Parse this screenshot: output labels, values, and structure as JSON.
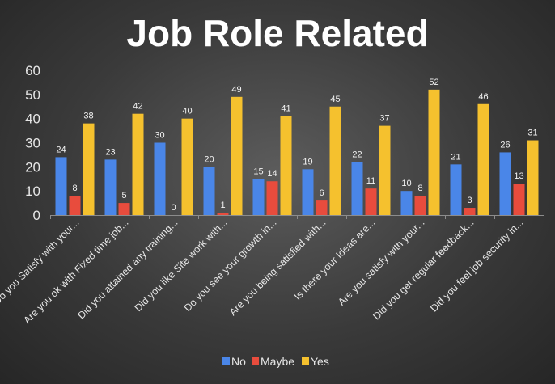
{
  "chart_data": {
    "type": "bar",
    "title": "Job Role Related",
    "categories": [
      "Do you Satisfy with your...",
      "Are you ok with Fixed time job...",
      "Did you attained any training...",
      "Did you like Site work with...",
      "Do you see your growth in...",
      "Are you being satisfied with...",
      "Is there your Ideas are...",
      "Are you satisfy with your...",
      "Did you get regular feedback...",
      "Did you feel job security in..."
    ],
    "series": [
      {
        "name": "No",
        "color": "#4a86e8",
        "values": [
          24,
          23,
          30,
          20,
          15,
          19,
          22,
          10,
          21,
          26
        ]
      },
      {
        "name": "Maybe",
        "color": "#e84c3d",
        "values": [
          8,
          5,
          0,
          1,
          14,
          6,
          11,
          8,
          3,
          13
        ]
      },
      {
        "name": "Yes",
        "color": "#f5c12e",
        "values": [
          38,
          42,
          40,
          49,
          41,
          45,
          37,
          52,
          46,
          31
        ]
      }
    ],
    "ylim": [
      0,
      60
    ],
    "yticks": [
      0,
      10,
      20,
      30,
      40,
      50,
      60
    ],
    "grid": false,
    "legend": "bottom"
  }
}
